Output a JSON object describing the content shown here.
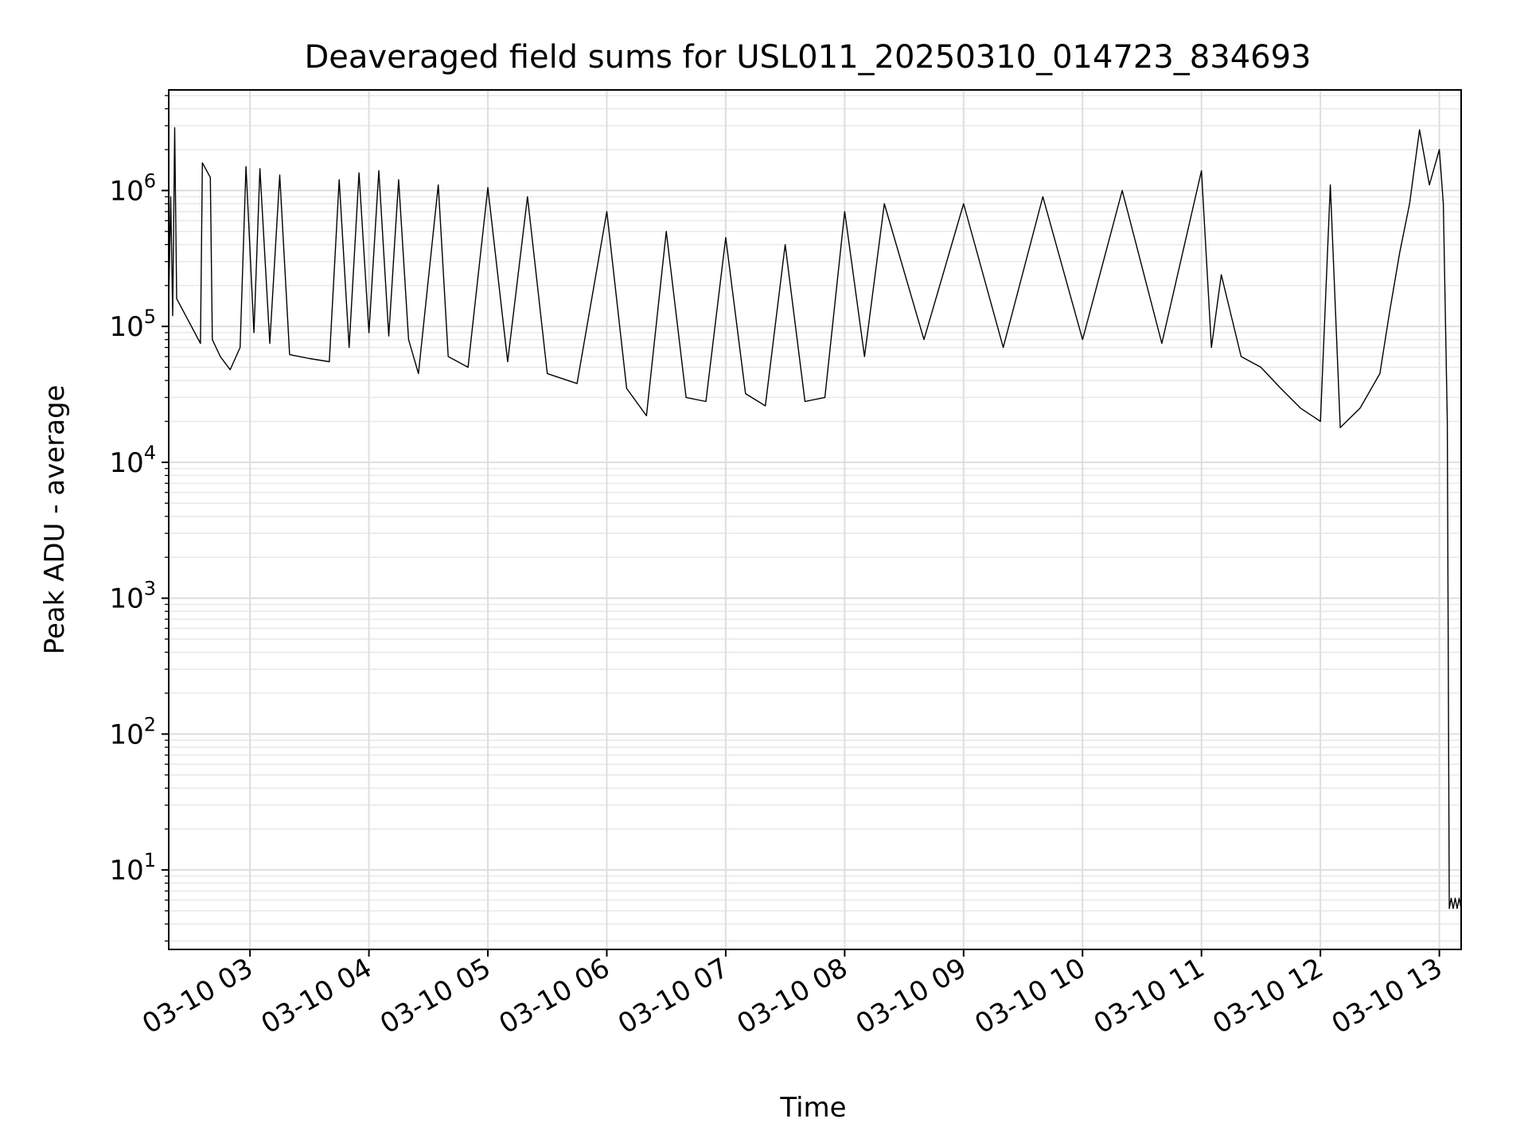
{
  "chart_data": {
    "type": "line",
    "title": "Deaveraged field sums for USL011_20250310_014723_834693",
    "xlabel": "Time",
    "ylabel": "Peak ADU - average",
    "x_range": [
      "2025-03-10 02:19",
      "2025-03-10 13:11"
    ],
    "y_range": [
      2.6,
      5500000
    ],
    "yscale": "log",
    "grid": "major and minor",
    "legend": "none",
    "x_ticks": [
      {
        "value": "2025-03-10 03:00",
        "label": "03-10 03"
      },
      {
        "value": "2025-03-10 04:00",
        "label": "03-10 04"
      },
      {
        "value": "2025-03-10 05:00",
        "label": "03-10 05"
      },
      {
        "value": "2025-03-10 06:00",
        "label": "03-10 06"
      },
      {
        "value": "2025-03-10 07:00",
        "label": "03-10 07"
      },
      {
        "value": "2025-03-10 08:00",
        "label": "03-10 08"
      },
      {
        "value": "2025-03-10 09:00",
        "label": "03-10 09"
      },
      {
        "value": "2025-03-10 10:00",
        "label": "03-10 10"
      },
      {
        "value": "2025-03-10 11:00",
        "label": "03-10 11"
      },
      {
        "value": "2025-03-10 12:00",
        "label": "03-10 12"
      },
      {
        "value": "2025-03-10 13:00",
        "label": "03-10 13"
      }
    ],
    "y_ticks": [
      {
        "value": 10,
        "base": "10",
        "exp": "1"
      },
      {
        "value": 100,
        "base": "10",
        "exp": "2"
      },
      {
        "value": 1000,
        "base": "10",
        "exp": "3"
      },
      {
        "value": 10000,
        "base": "10",
        "exp": "4"
      },
      {
        "value": 100000,
        "base": "10",
        "exp": "5"
      },
      {
        "value": 1000000,
        "base": "10",
        "exp": "6"
      }
    ],
    "series": [
      {
        "color": "#000000",
        "points": [
          [
            "2025-03-10 02:19",
            150000
          ],
          [
            "2025-03-10 02:20",
            900000
          ],
          [
            "2025-03-10 02:21",
            120000
          ],
          [
            "2025-03-10 02:22",
            2900000
          ],
          [
            "2025-03-10 02:23",
            160000
          ],
          [
            "2025-03-10 02:35",
            75000
          ],
          [
            "2025-03-10 02:36",
            1600000
          ],
          [
            "2025-03-10 02:40",
            1250000
          ],
          [
            "2025-03-10 02:41",
            80000
          ],
          [
            "2025-03-10 02:45",
            60000
          ],
          [
            "2025-03-10 02:50",
            48000
          ],
          [
            "2025-03-10 02:55",
            70000
          ],
          [
            "2025-03-10 02:58",
            1500000
          ],
          [
            "2025-03-10 03:02",
            90000
          ],
          [
            "2025-03-10 03:05",
            1450000
          ],
          [
            "2025-03-10 03:10",
            75000
          ],
          [
            "2025-03-10 03:15",
            1300000
          ],
          [
            "2025-03-10 03:20",
            62000
          ],
          [
            "2025-03-10 03:30",
            58000
          ],
          [
            "2025-03-10 03:40",
            55000
          ],
          [
            "2025-03-10 03:45",
            1200000
          ],
          [
            "2025-03-10 03:50",
            70000
          ],
          [
            "2025-03-10 03:55",
            1350000
          ],
          [
            "2025-03-10 04:00",
            90000
          ],
          [
            "2025-03-10 04:05",
            1400000
          ],
          [
            "2025-03-10 04:10",
            85000
          ],
          [
            "2025-03-10 04:15",
            1200000
          ],
          [
            "2025-03-10 04:20",
            80000
          ],
          [
            "2025-03-10 04:25",
            45000
          ],
          [
            "2025-03-10 04:35",
            1100000
          ],
          [
            "2025-03-10 04:40",
            60000
          ],
          [
            "2025-03-10 04:50",
            50000
          ],
          [
            "2025-03-10 05:00",
            1050000
          ],
          [
            "2025-03-10 05:10",
            55000
          ],
          [
            "2025-03-10 05:20",
            900000
          ],
          [
            "2025-03-10 05:30",
            45000
          ],
          [
            "2025-03-10 05:45",
            38000
          ],
          [
            "2025-03-10 06:00",
            700000
          ],
          [
            "2025-03-10 06:10",
            35000
          ],
          [
            "2025-03-10 06:20",
            22000
          ],
          [
            "2025-03-10 06:30",
            500000
          ],
          [
            "2025-03-10 06:40",
            30000
          ],
          [
            "2025-03-10 06:50",
            28000
          ],
          [
            "2025-03-10 07:00",
            450000
          ],
          [
            "2025-03-10 07:10",
            32000
          ],
          [
            "2025-03-10 07:20",
            26000
          ],
          [
            "2025-03-10 07:30",
            400000
          ],
          [
            "2025-03-10 07:40",
            28000
          ],
          [
            "2025-03-10 07:50",
            30000
          ],
          [
            "2025-03-10 08:00",
            700000
          ],
          [
            "2025-03-10 08:10",
            60000
          ],
          [
            "2025-03-10 08:20",
            800000
          ],
          [
            "2025-03-10 08:40",
            80000
          ],
          [
            "2025-03-10 09:00",
            800000
          ],
          [
            "2025-03-10 09:20",
            70000
          ],
          [
            "2025-03-10 09:40",
            900000
          ],
          [
            "2025-03-10 10:00",
            80000
          ],
          [
            "2025-03-10 10:20",
            1000000
          ],
          [
            "2025-03-10 10:40",
            75000
          ],
          [
            "2025-03-10 11:00",
            1400000
          ],
          [
            "2025-03-10 11:05",
            70000
          ],
          [
            "2025-03-10 11:10",
            240000
          ],
          [
            "2025-03-10 11:20",
            60000
          ],
          [
            "2025-03-10 11:30",
            50000
          ],
          [
            "2025-03-10 11:40",
            35000
          ],
          [
            "2025-03-10 11:50",
            25000
          ],
          [
            "2025-03-10 12:00",
            20000
          ],
          [
            "2025-03-10 12:05",
            1100000
          ],
          [
            "2025-03-10 12:10",
            18000
          ],
          [
            "2025-03-10 12:20",
            25000
          ],
          [
            "2025-03-10 12:30",
            45000
          ],
          [
            "2025-03-10 12:35",
            130000
          ],
          [
            "2025-03-10 12:40",
            350000
          ],
          [
            "2025-03-10 12:45",
            800000
          ],
          [
            "2025-03-10 12:50",
            2800000
          ],
          [
            "2025-03-10 12:55",
            1100000
          ],
          [
            "2025-03-10 13:00",
            2000000
          ],
          [
            "2025-03-10 13:02",
            800000
          ],
          [
            "2025-03-10 13:04",
            20000
          ],
          [
            "2025-03-10 13:05",
            5.2
          ],
          [
            "2025-03-10 13:06",
            6.2
          ],
          [
            "2025-03-10 13:07",
            5.2
          ],
          [
            "2025-03-10 13:08",
            6.2
          ],
          [
            "2025-03-10 13:09",
            5.2
          ],
          [
            "2025-03-10 13:10",
            6.2
          ],
          [
            "2025-03-10 13:11",
            5.2
          ]
        ]
      }
    ]
  }
}
